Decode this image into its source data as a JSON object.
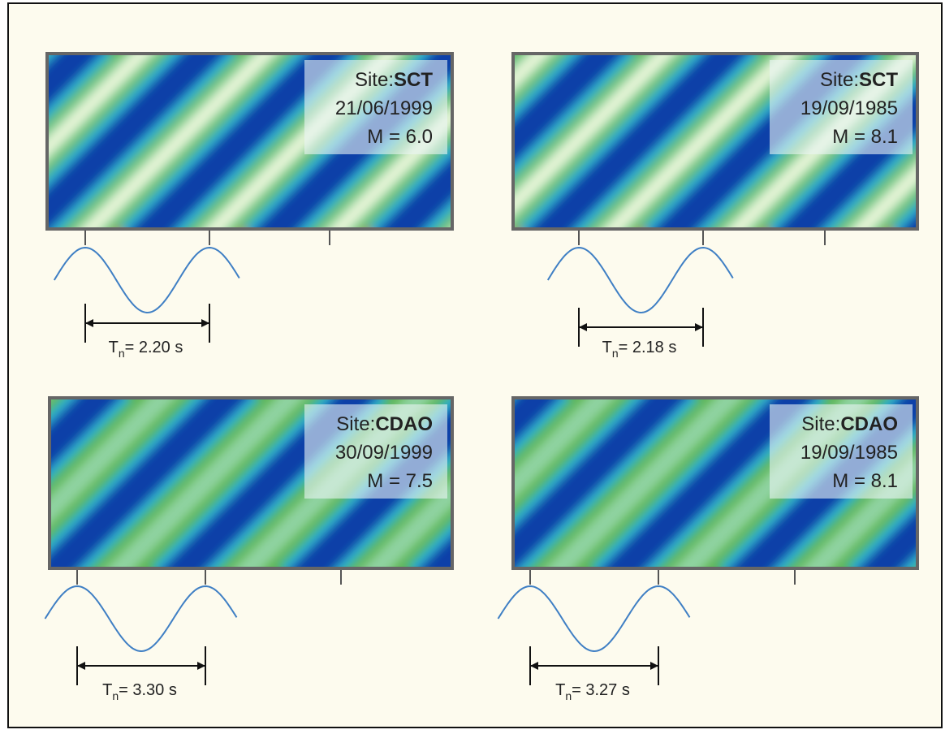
{
  "panels": [
    {
      "site_prefix": "Site:",
      "site": "SCT",
      "date": "21/06/1999",
      "magnitude": "M = 6.0",
      "period_symbol": "T",
      "period_subscript": "n",
      "period_value": "= 2.20 s"
    },
    {
      "site_prefix": "Site:",
      "site": "SCT",
      "date": "19/09/1985",
      "magnitude": "M = 8.1",
      "period_symbol": "T",
      "period_subscript": "n",
      "period_value": "= 2.18 s"
    },
    {
      "site_prefix": "Site:",
      "site": "CDAO",
      "date": "30/09/1999",
      "magnitude": "M = 7.5",
      "period_symbol": "T",
      "period_subscript": "n",
      "period_value": "= 3.30 s"
    },
    {
      "site_prefix": "Site:",
      "site": "CDAO",
      "date": "19/09/1985",
      "magnitude": "M = 8.1",
      "period_symbol": "T",
      "period_subscript": "n",
      "period_value": "= 3.27 s"
    }
  ]
}
